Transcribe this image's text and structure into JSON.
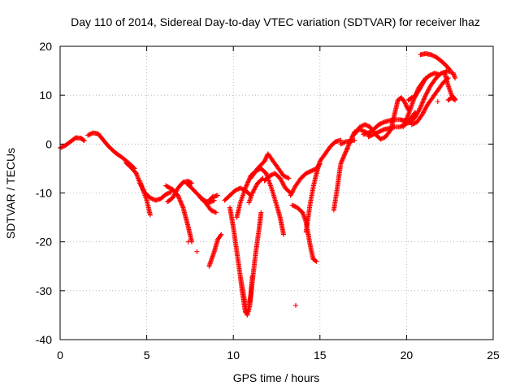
{
  "chart_data": {
    "type": "scatter",
    "title": "Day 110 of 2014, Sidereal Day-to-day VTEC variation (SDTVAR) for receiver lhaz",
    "xlabel": "GPS time / hours",
    "ylabel": "SDTVAR / TECUs",
    "xlim": [
      0,
      25
    ],
    "ylim": [
      -40,
      20
    ],
    "x_ticks": [
      "0",
      "5",
      "10",
      "15",
      "20",
      "25"
    ],
    "y_ticks": [
      "20",
      "10",
      "0",
      "-10",
      "-20",
      "-30",
      "-40"
    ],
    "x_tick_values": [
      0,
      5,
      10,
      15,
      20,
      25
    ],
    "y_tick_values": [
      20,
      10,
      0,
      -10,
      -20,
      -30,
      -40
    ],
    "grid": true,
    "marker": "+",
    "color": "#ff0000",
    "tracks": [
      [
        [
          0.0,
          -0.8
        ],
        [
          0.3,
          -0.3
        ],
        [
          0.6,
          0.5
        ],
        [
          0.9,
          1.3
        ],
        [
          1.2,
          1.2
        ],
        [
          1.4,
          0.7
        ]
      ],
      [
        [
          1.6,
          1.8
        ],
        [
          1.9,
          2.3
        ],
        [
          2.2,
          2.1
        ],
        [
          2.5,
          0.8
        ],
        [
          2.8,
          -0.5
        ],
        [
          3.2,
          -1.8
        ],
        [
          3.6,
          -2.8
        ],
        [
          4.0,
          -4.0
        ],
        [
          4.3,
          -5.0
        ]
      ],
      [
        [
          3.8,
          -3.8
        ],
        [
          4.1,
          -4.8
        ],
        [
          4.4,
          -6.0
        ],
        [
          4.6,
          -8.0
        ],
        [
          4.9,
          -10.0
        ],
        [
          5.2,
          -11.0
        ],
        [
          5.5,
          -11.5
        ],
        [
          5.8,
          -11.2
        ],
        [
          6.1,
          -10.3
        ],
        [
          6.4,
          -9.8
        ]
      ],
      [
        [
          4.6,
          -7.5
        ],
        [
          4.8,
          -9.5
        ],
        [
          5.0,
          -11.5
        ],
        [
          5.2,
          -14.5
        ]
      ],
      [
        [
          6.2,
          -11.8
        ],
        [
          6.5,
          -11.0
        ],
        [
          6.8,
          -9.0
        ],
        [
          7.1,
          -7.8
        ],
        [
          7.4,
          -7.6
        ],
        [
          7.6,
          -8.0
        ]
      ],
      [
        [
          6.1,
          -8.5
        ],
        [
          6.5,
          -9.3
        ],
        [
          6.8,
          -10.5
        ],
        [
          7.1,
          -13.0
        ],
        [
          7.4,
          -17.0
        ],
        [
          7.6,
          -20.0
        ]
      ],
      [
        [
          7.3,
          -8.0
        ],
        [
          7.6,
          -9.0
        ],
        [
          8.0,
          -10.5
        ],
        [
          8.3,
          -11.5
        ],
        [
          8.6,
          -12.0
        ],
        [
          8.9,
          -11.5
        ]
      ],
      [
        [
          8.1,
          -11.0
        ],
        [
          8.4,
          -12.0
        ],
        [
          8.7,
          -13.5
        ],
        [
          9.0,
          -14.0
        ]
      ],
      [
        [
          8.6,
          -11.5
        ],
        [
          8.8,
          -10.8
        ],
        [
          9.1,
          -10.5
        ]
      ],
      [
        [
          8.6,
          -25.0
        ],
        [
          8.9,
          -22.0
        ],
        [
          9.1,
          -19.5
        ],
        [
          9.3,
          -18.5
        ]
      ],
      [
        [
          9.5,
          -11.5
        ],
        [
          9.8,
          -10.5
        ],
        [
          10.1,
          -9.5
        ],
        [
          10.4,
          -9.0
        ],
        [
          10.7,
          -9.5
        ],
        [
          11.0,
          -10.5
        ]
      ],
      [
        [
          9.8,
          -13.0
        ],
        [
          10.0,
          -17.0
        ],
        [
          10.2,
          -22.0
        ],
        [
          10.4,
          -27.0
        ],
        [
          10.55,
          -31.0
        ],
        [
          10.7,
          -34.5
        ],
        [
          10.85,
          -34.0
        ],
        [
          11.0,
          -31.0
        ],
        [
          11.1,
          -27.0
        ]
      ],
      [
        [
          10.4,
          -27.0
        ],
        [
          10.6,
          -31.0
        ],
        [
          10.8,
          -35.0
        ],
        [
          10.95,
          -33.0
        ],
        [
          11.1,
          -28.0
        ],
        [
          11.3,
          -22.0
        ],
        [
          11.5,
          -17.0
        ],
        [
          11.6,
          -14.0
        ]
      ],
      [
        [
          10.2,
          -15.0
        ],
        [
          10.4,
          -12.0
        ],
        [
          10.7,
          -9.0
        ],
        [
          11.0,
          -6.5
        ],
        [
          11.3,
          -5.5
        ],
        [
          11.6,
          -5.0
        ],
        [
          11.9,
          -6.0
        ],
        [
          12.2,
          -9.0
        ],
        [
          12.5,
          -12.5
        ],
        [
          12.7,
          -15.0
        ],
        [
          12.9,
          -18.5
        ]
      ],
      [
        [
          11.0,
          -7.0
        ],
        [
          11.4,
          -5.0
        ],
        [
          11.8,
          -3.5
        ],
        [
          12.0,
          -2.0
        ],
        [
          12.3,
          -3.5
        ],
        [
          12.6,
          -5.0
        ],
        [
          12.9,
          -6.5
        ],
        [
          13.2,
          -7.0
        ]
      ],
      [
        [
          10.9,
          -12.0
        ],
        [
          11.1,
          -10.0
        ],
        [
          11.4,
          -8.0
        ],
        [
          11.7,
          -7.0
        ]
      ],
      [
        [
          11.8,
          -7.5
        ],
        [
          12.1,
          -6.5
        ],
        [
          12.4,
          -6.0
        ],
        [
          12.7,
          -7.0
        ],
        [
          13.0,
          -9.0
        ],
        [
          13.3,
          -10.0
        ]
      ],
      [
        [
          13.3,
          -10.5
        ],
        [
          13.6,
          -8.5
        ],
        [
          13.9,
          -7.0
        ],
        [
          14.2,
          -6.0
        ],
        [
          14.5,
          -5.5
        ],
        [
          14.8,
          -5.0
        ],
        [
          15.0,
          -4.0
        ]
      ],
      [
        [
          14.2,
          -18.0
        ],
        [
          14.4,
          -13.0
        ],
        [
          14.6,
          -9.0
        ],
        [
          14.8,
          -6.0
        ],
        [
          15.0,
          -3.5
        ],
        [
          15.3,
          -2.0
        ],
        [
          15.6,
          -0.5
        ],
        [
          15.9,
          0.5
        ],
        [
          16.2,
          0.8
        ]
      ],
      [
        [
          13.4,
          -12.5
        ],
        [
          13.7,
          -13.0
        ],
        [
          14.0,
          -14.0
        ],
        [
          14.2,
          -16.0
        ],
        [
          14.4,
          -20.0
        ],
        [
          14.6,
          -23.5
        ],
        [
          14.8,
          -24.0
        ]
      ],
      [
        [
          15.8,
          -13.5
        ],
        [
          16.0,
          -9.0
        ],
        [
          16.2,
          -4.0
        ],
        [
          16.5,
          -1.5
        ],
        [
          16.8,
          1.0
        ],
        [
          17.0,
          2.5
        ],
        [
          17.3,
          3.0
        ],
        [
          17.6,
          2.5
        ],
        [
          17.9,
          2.0
        ]
      ],
      [
        [
          16.2,
          0.0
        ],
        [
          16.5,
          0.5
        ],
        [
          16.8,
          0.6
        ],
        [
          17.0,
          0.8
        ]
      ],
      [
        [
          17.0,
          2.0
        ],
        [
          17.3,
          3.5
        ],
        [
          17.6,
          4.0
        ],
        [
          17.9,
          3.5
        ],
        [
          18.2,
          2.0
        ],
        [
          18.5,
          1.0
        ],
        [
          18.8,
          1.5
        ],
        [
          19.1,
          3.0
        ],
        [
          19.3,
          6.0
        ],
        [
          19.5,
          9.0
        ],
        [
          19.7,
          9.5
        ],
        [
          19.9,
          8.5
        ],
        [
          20.1,
          7.0
        ]
      ],
      [
        [
          17.5,
          2.0
        ],
        [
          17.8,
          2.3
        ],
        [
          18.1,
          3.0
        ],
        [
          18.4,
          4.0
        ],
        [
          18.7,
          4.5
        ],
        [
          19.0,
          4.8
        ],
        [
          19.3,
          5.0
        ],
        [
          19.6,
          5.0
        ],
        [
          19.9,
          4.8
        ],
        [
          20.2,
          5.0
        ],
        [
          20.5,
          6.5
        ]
      ],
      [
        [
          17.8,
          1.5
        ],
        [
          18.1,
          2.0
        ],
        [
          18.4,
          2.5
        ],
        [
          18.7,
          3.0
        ],
        [
          19.0,
          3.2
        ],
        [
          19.3,
          3.5
        ],
        [
          19.6,
          3.5
        ],
        [
          19.9,
          4.0
        ],
        [
          20.2,
          4.5
        ],
        [
          20.5,
          5.5
        ],
        [
          20.8,
          7.5
        ],
        [
          21.1,
          10.0
        ],
        [
          21.4,
          12.0
        ],
        [
          21.7,
          13.5
        ],
        [
          22.0,
          14.5
        ],
        [
          22.3,
          14.8
        ]
      ],
      [
        [
          19.8,
          3.5
        ],
        [
          20.1,
          6.0
        ],
        [
          20.4,
          9.0
        ],
        [
          20.7,
          11.5
        ],
        [
          21.0,
          13.0
        ],
        [
          21.3,
          14.0
        ],
        [
          21.6,
          14.5
        ],
        [
          21.9,
          14.2
        ]
      ],
      [
        [
          20.1,
          9.0
        ],
        [
          20.3,
          9.5
        ],
        [
          20.5,
          9.8
        ],
        [
          20.8,
          11.5
        ],
        [
          21.1,
          13.5
        ]
      ],
      [
        [
          20.3,
          4.0
        ],
        [
          20.6,
          4.5
        ],
        [
          20.9,
          6.0
        ],
        [
          21.2,
          8.0
        ],
        [
          21.5,
          9.5
        ],
        [
          21.8,
          11.0
        ],
        [
          22.1,
          12.5
        ],
        [
          22.4,
          13.5
        ]
      ],
      [
        [
          20.8,
          18.3
        ],
        [
          21.1,
          18.5
        ],
        [
          21.4,
          18.3
        ],
        [
          21.7,
          17.8
        ],
        [
          22.0,
          17.0
        ],
        [
          22.3,
          16.0
        ],
        [
          22.5,
          15.2
        ]
      ],
      [
        [
          22.2,
          14.5
        ],
        [
          22.4,
          12.0
        ],
        [
          22.6,
          10.0
        ],
        [
          22.8,
          9.2
        ]
      ],
      [
        [
          22.3,
          15.0
        ],
        [
          22.5,
          14.8
        ],
        [
          22.7,
          14.5
        ],
        [
          22.8,
          13.5
        ]
      ],
      [
        [
          22.4,
          9.0
        ],
        [
          22.6,
          9.5
        ],
        [
          22.8,
          9.0
        ]
      ]
    ],
    "isolated_points": [
      [
        7.4,
        -20.0
      ],
      [
        7.9,
        -22.0
      ],
      [
        13.6,
        -33.0
      ],
      [
        16.6,
        -1.0
      ],
      [
        21.8,
        8.7
      ]
    ]
  }
}
